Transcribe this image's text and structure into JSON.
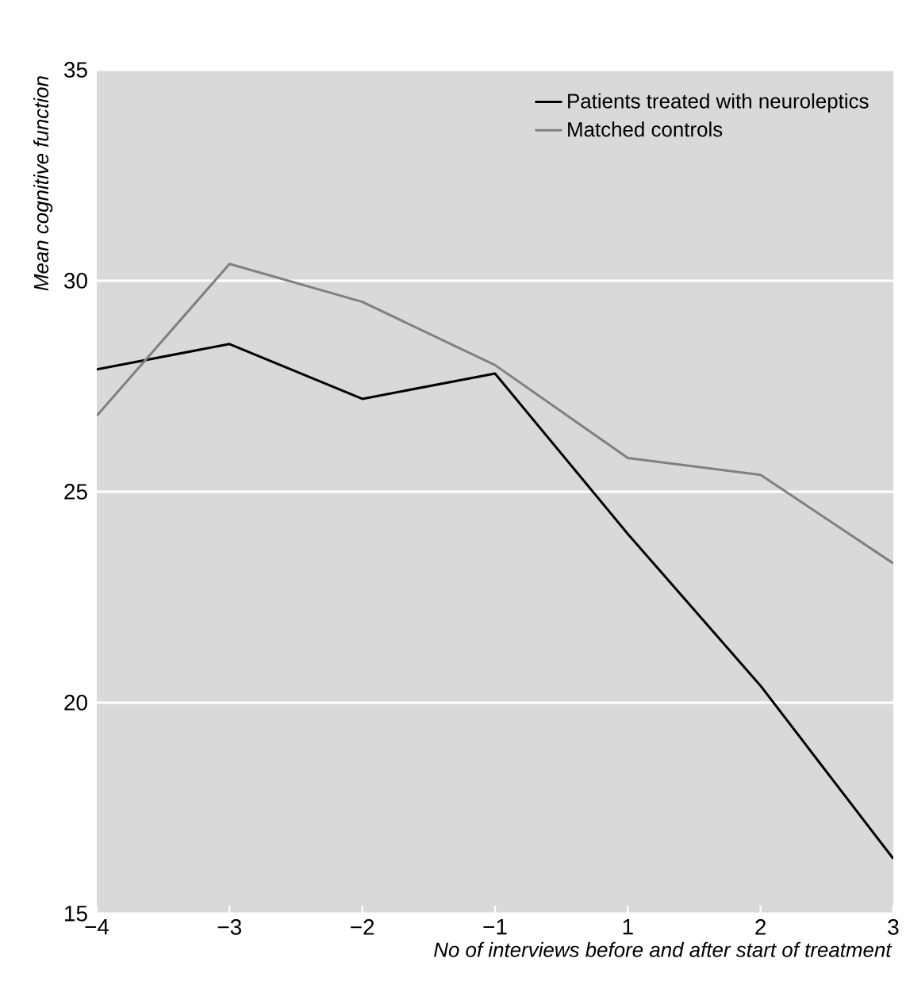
{
  "chart_data": {
    "type": "line",
    "xlabel": "No of interviews before and after start of treatment",
    "ylabel": "Mean cognitive function",
    "categories": [
      "−4",
      "−3",
      "−2",
      "−1",
      "1",
      "2",
      "3"
    ],
    "series": [
      {
        "name": "Patients treated with neuroleptics",
        "color": "#000000",
        "values": [
          27.9,
          28.5,
          27.2,
          27.8,
          24.0,
          20.4,
          16.3
        ]
      },
      {
        "name": "Matched controls",
        "color": "#808080",
        "values": [
          26.8,
          30.4,
          29.5,
          28.0,
          25.8,
          25.4,
          23.3
        ]
      }
    ],
    "ylim": [
      15,
      35
    ],
    "yticks": [
      15,
      20,
      25,
      30,
      35
    ],
    "grid": "y",
    "legend": "top right",
    "marker": "none"
  }
}
